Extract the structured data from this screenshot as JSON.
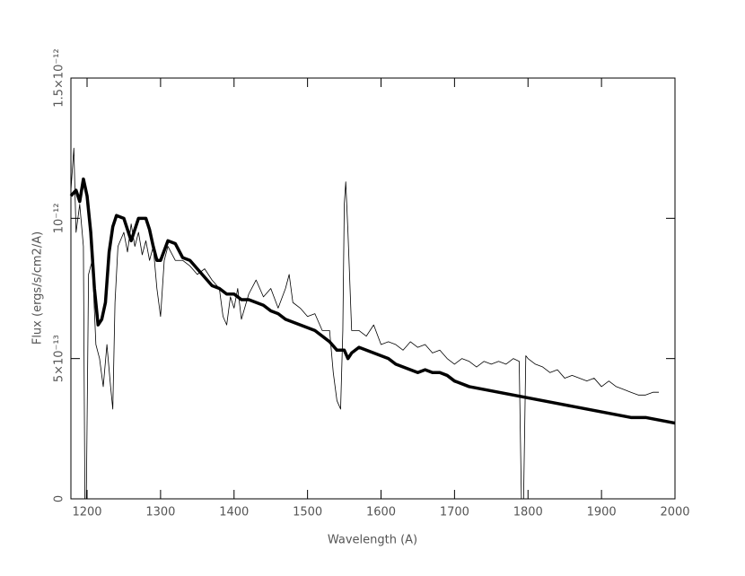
{
  "chart_data": {
    "type": "line",
    "xlabel": "Wavelength (A)",
    "ylabel": "Flux (ergs/s/cm2/A)",
    "xlim": [
      1178,
      2000
    ],
    "xticks": [
      1200,
      1300,
      1400,
      1500,
      1600,
      1700,
      1800,
      1900,
      2000
    ],
    "ylim": [
      0,
      1.5e-12
    ],
    "yticks": [
      0,
      {
        "value": 5e-13,
        "label": "5×10⁻¹³"
      },
      {
        "value": 1e-12,
        "label": "10⁻¹²"
      },
      {
        "value": 1.5e-12,
        "label": "1.5×10⁻¹²"
      }
    ],
    "series": [
      {
        "color": "#000000",
        "width": 0.8,
        "x": [
          1178,
          1182,
          1185,
          1190,
          1195,
          1197,
          1199,
          1202,
          1207,
          1212,
          1217,
          1222,
          1227,
          1232,
          1235,
          1238,
          1242,
          1250,
          1255,
          1260,
          1265,
          1270,
          1275,
          1280,
          1285,
          1290,
          1295,
          1300,
          1305,
          1310,
          1320,
          1330,
          1340,
          1350,
          1360,
          1370,
          1380,
          1385,
          1390,
          1395,
          1400,
          1405,
          1410,
          1420,
          1430,
          1440,
          1450,
          1460,
          1470,
          1475,
          1480,
          1490,
          1500,
          1510,
          1520,
          1530,
          1535,
          1540,
          1545,
          1548,
          1550,
          1552,
          1555,
          1560,
          1570,
          1580,
          1590,
          1600,
          1610,
          1620,
          1630,
          1640,
          1650,
          1660,
          1670,
          1680,
          1690,
          1700,
          1710,
          1720,
          1730,
          1740,
          1750,
          1760,
          1770,
          1780,
          1788,
          1791,
          1794,
          1797,
          1800,
          1810,
          1820,
          1830,
          1840,
          1850,
          1860,
          1870,
          1880,
          1890,
          1900,
          1910,
          1920,
          1930,
          1940,
          1950,
          1960,
          1970,
          1978
        ],
        "values": [
          1.1e-12,
          1.25e-12,
          9.5e-13,
          1.05e-12,
          9e-13,
          0,
          0,
          8e-13,
          8.5e-13,
          5.5e-13,
          5e-13,
          4e-13,
          5.5e-13,
          4e-13,
          3.2e-13,
          7e-13,
          9e-13,
          9.5e-13,
          8.8e-13,
          9.8e-13,
          9e-13,
          9.5e-13,
          8.7e-13,
          9.2e-13,
          8.5e-13,
          9e-13,
          7.5e-13,
          6.5e-13,
          8.5e-13,
          9e-13,
          8.5e-13,
          8.5e-13,
          8.3e-13,
          8e-13,
          8.2e-13,
          7.8e-13,
          7.5e-13,
          6.5e-13,
          6.2e-13,
          7.2e-13,
          6.8e-13,
          7.5e-13,
          6.4e-13,
          7.3e-13,
          7.8e-13,
          7.2e-13,
          7.5e-13,
          6.8e-13,
          7.5e-13,
          8e-13,
          7e-13,
          6.8e-13,
          6.5e-13,
          6.6e-13,
          6e-13,
          6e-13,
          4.5e-13,
          3.5e-13,
          3.2e-13,
          6e-13,
          1.05e-12,
          1.13e-12,
          9.5e-13,
          6e-13,
          6e-13,
          5.8e-13,
          6.2e-13,
          5.5e-13,
          5.6e-13,
          5.5e-13,
          5.3e-13,
          5.6e-13,
          5.4e-13,
          5.5e-13,
          5.2e-13,
          5.3e-13,
          5e-13,
          4.8e-13,
          5e-13,
          4.9e-13,
          4.7e-13,
          4.9e-13,
          4.8e-13,
          4.9e-13,
          4.8e-13,
          5e-13,
          4.9e-13,
          0,
          0,
          5.1e-13,
          5e-13,
          4.8e-13,
          4.7e-13,
          4.5e-13,
          4.6e-13,
          4.3e-13,
          4.4e-13,
          4.3e-13,
          4.2e-13,
          4.3e-13,
          4e-13,
          4.2e-13,
          4e-13,
          3.9e-13,
          3.8e-13,
          3.7e-13,
          3.7e-13,
          3.8e-13,
          3.8e-13
        ]
      },
      {
        "color": "#000000",
        "width": 3.5,
        "x": [
          1178,
          1185,
          1190,
          1195,
          1200,
          1205,
          1210,
          1215,
          1220,
          1225,
          1230,
          1235,
          1240,
          1250,
          1260,
          1265,
          1270,
          1280,
          1285,
          1290,
          1295,
          1300,
          1310,
          1320,
          1330,
          1340,
          1350,
          1360,
          1370,
          1380,
          1390,
          1400,
          1410,
          1420,
          1430,
          1440,
          1450,
          1460,
          1470,
          1480,
          1490,
          1500,
          1510,
          1520,
          1530,
          1540,
          1550,
          1555,
          1560,
          1570,
          1580,
          1590,
          1600,
          1610,
          1620,
          1630,
          1640,
          1650,
          1660,
          1670,
          1680,
          1690,
          1700,
          1720,
          1740,
          1760,
          1780,
          1800,
          1820,
          1840,
          1860,
          1880,
          1900,
          1920,
          1940,
          1960,
          1980,
          2000
        ],
        "values": [
          1.08e-12,
          1.1e-12,
          1.06e-12,
          1.14e-12,
          1.08e-12,
          9.5e-13,
          7.5e-13,
          6.2e-13,
          6.4e-13,
          7e-13,
          8.8e-13,
          9.7e-13,
          1.01e-12,
          1e-12,
          9.2e-13,
          9.6e-13,
          1e-12,
          1e-12,
          9.6e-13,
          9e-13,
          8.5e-13,
          8.5e-13,
          9.2e-13,
          9.1e-13,
          8.6e-13,
          8.5e-13,
          8.2e-13,
          7.9e-13,
          7.6e-13,
          7.5e-13,
          7.3e-13,
          7.3e-13,
          7.1e-13,
          7.1e-13,
          7e-13,
          6.9e-13,
          6.7e-13,
          6.6e-13,
          6.4e-13,
          6.3e-13,
          6.2e-13,
          6.1e-13,
          6e-13,
          5.8e-13,
          5.6e-13,
          5.3e-13,
          5.3e-13,
          5e-13,
          5.2e-13,
          5.4e-13,
          5.3e-13,
          5.2e-13,
          5.1e-13,
          5e-13,
          4.8e-13,
          4.7e-13,
          4.6e-13,
          4.5e-13,
          4.6e-13,
          4.5e-13,
          4.5e-13,
          4.4e-13,
          4.2e-13,
          4e-13,
          3.9e-13,
          3.8e-13,
          3.7e-13,
          3.6e-13,
          3.5e-13,
          3.4e-13,
          3.3e-13,
          3.2e-13,
          3.1e-13,
          3e-13,
          2.9e-13,
          2.9e-13,
          2.8e-13,
          2.7e-13
        ]
      }
    ]
  }
}
